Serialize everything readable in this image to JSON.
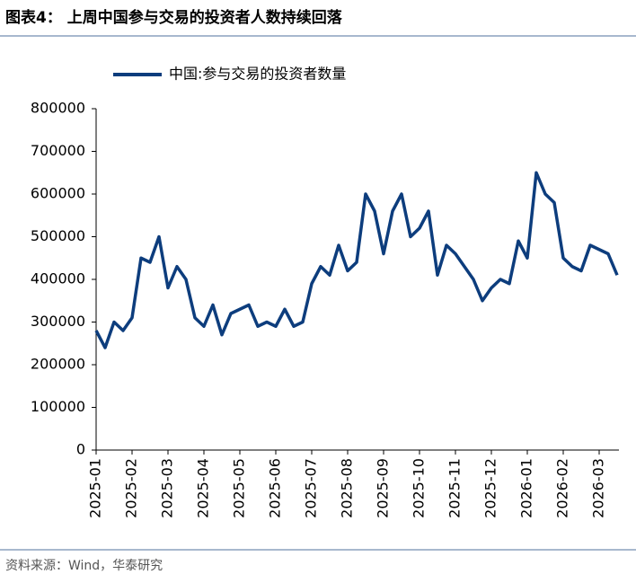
{
  "title": "图表4：  上周中国参与交易的投资者人数持续回落",
  "source": "资料来源：Wind，华泰研究",
  "chart_data": {
    "type": "line",
    "categories": [
      "2025-01",
      null,
      null,
      null,
      "2025-02",
      null,
      null,
      null,
      "2025-03",
      null,
      null,
      null,
      "2025-04",
      null,
      null,
      null,
      "2025-05",
      null,
      null,
      null,
      "2025-06",
      null,
      null,
      null,
      "2025-07",
      null,
      null,
      null,
      "2025-08",
      null,
      null,
      null,
      "2025-09",
      null,
      null,
      null,
      "2025-10",
      null,
      null,
      null,
      "2025-11",
      null,
      null,
      null,
      "2025-12",
      null,
      null,
      null,
      "2026-01",
      null,
      null,
      null,
      "2026-02",
      null,
      null,
      null,
      "2026-03",
      null,
      null
    ],
    "series": [
      {
        "name": "中国:参与交易的投资者数量",
        "color": "#0d3d7d",
        "values": [
          280000,
          240000,
          300000,
          280000,
          310000,
          450000,
          440000,
          500000,
          380000,
          430000,
          400000,
          310000,
          290000,
          340000,
          270000,
          320000,
          330000,
          340000,
          290000,
          300000,
          290000,
          330000,
          290000,
          300000,
          390000,
          430000,
          410000,
          480000,
          420000,
          440000,
          600000,
          560000,
          460000,
          560000,
          600000,
          500000,
          520000,
          560000,
          410000,
          480000,
          460000,
          430000,
          400000,
          350000,
          380000,
          400000,
          390000,
          490000,
          450000,
          650000,
          600000,
          580000,
          450000,
          430000,
          420000,
          480000,
          470000,
          460000,
          410000
        ]
      }
    ],
    "ylim": [
      0,
      800000
    ],
    "yticks": [
      0,
      100000,
      200000,
      300000,
      400000,
      500000,
      600000,
      700000,
      800000
    ],
    "legend": "top"
  }
}
